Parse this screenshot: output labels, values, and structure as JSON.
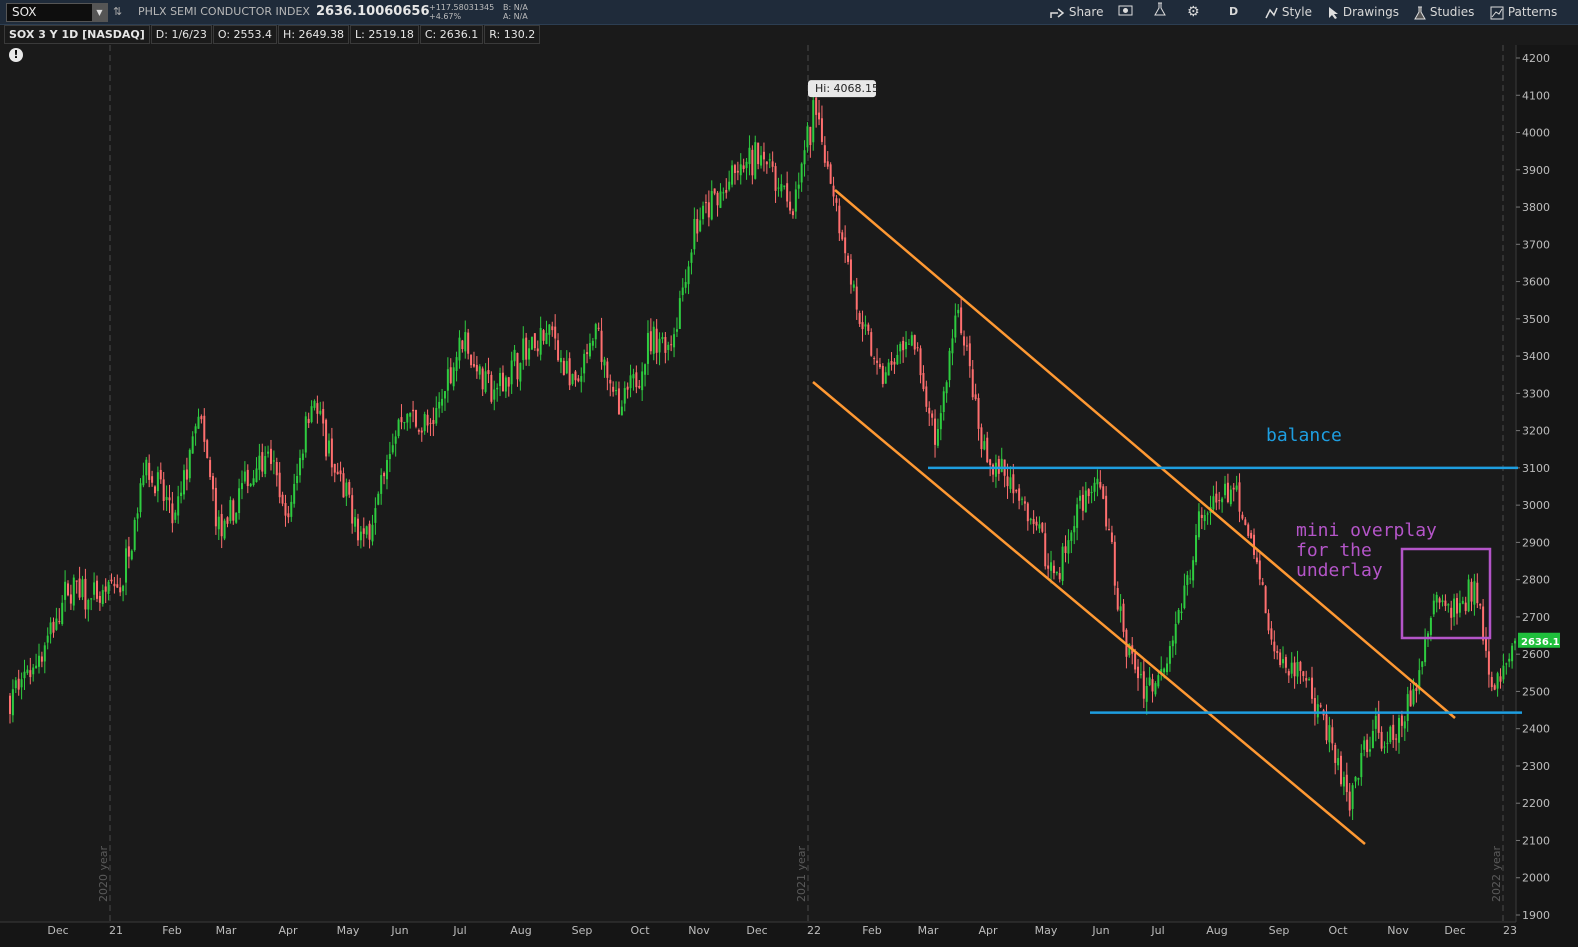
{
  "toolbar": {
    "symbol": "SOX",
    "description": "PHLX SEMI CONDUCTOR INDEX",
    "last": "2636.10060656",
    "change": "+117.58031345",
    "change_pct": "+4.67%",
    "bid": "B: N/A",
    "ask": "A: N/A",
    "share_label": "Share",
    "aggregation": "D",
    "style_label": "Style",
    "drawings_label": "Drawings",
    "studies_label": "Studies",
    "patterns_label": "Patterns"
  },
  "infobar": {
    "title": "SOX 3 Y 1D [NASDAQ]",
    "date": "D: 1/6/23",
    "open": "O: 2553.4",
    "high": "H: 2649.38",
    "low": "L: 2519.18",
    "close": "C: 2636.1",
    "range": "R: 130.2"
  },
  "colors": {
    "up": "#2ecc40",
    "down": "#ff6f6f",
    "channel": "#ff9933",
    "levels": "#1e9ee0",
    "box": "#b455c8",
    "background": "#1a1a1a",
    "last_price_tag": "#1fbf3c"
  },
  "chart_data": {
    "type": "candlestick",
    "title": "SOX 3 Y 1D [NASDAQ]",
    "ylim": [
      1900,
      4250
    ],
    "yticks": [
      4200,
      4100,
      4000,
      3900,
      3800,
      3700,
      3600,
      3500,
      3400,
      3300,
      3200,
      3100,
      3000,
      2900,
      2800,
      2700,
      2600,
      2500,
      2400,
      2300,
      2200,
      2100,
      2000,
      1900
    ],
    "x_labels": [
      "Dec",
      "21",
      "Feb",
      "Mar",
      "Apr",
      "May",
      "Jun",
      "Jul",
      "Aug",
      "Sep",
      "Oct",
      "Nov",
      "Dec",
      "22",
      "Feb",
      "Mar",
      "Apr",
      "May",
      "Jun",
      "Jul",
      "Aug",
      "Sep",
      "Oct",
      "Nov",
      "Dec",
      "23"
    ],
    "year_markers": [
      "2020 year",
      "2021 year",
      "2022 year"
    ],
    "high_label": "Hi: 4068.15",
    "last_price_label": "2636.1",
    "price_path": [
      [
        0,
        2480
      ],
      [
        0.02,
        2600
      ],
      [
        0.04,
        2780
      ],
      [
        0.06,
        2740
      ],
      [
        0.075,
        2800
      ],
      [
        0.09,
        3120
      ],
      [
        0.11,
        2950
      ],
      [
        0.125,
        3250
      ],
      [
        0.14,
        2900
      ],
      [
        0.155,
        3050
      ],
      [
        0.17,
        3150
      ],
      [
        0.185,
        2960
      ],
      [
        0.2,
        3300
      ],
      [
        0.215,
        3100
      ],
      [
        0.235,
        2900
      ],
      [
        0.26,
        3250
      ],
      [
        0.28,
        3200
      ],
      [
        0.3,
        3450
      ],
      [
        0.32,
        3300
      ],
      [
        0.34,
        3400
      ],
      [
        0.36,
        3460
      ],
      [
        0.375,
        3300
      ],
      [
        0.39,
        3460
      ],
      [
        0.405,
        3240
      ],
      [
        0.425,
        3430
      ],
      [
        0.44,
        3450
      ],
      [
        0.455,
        3750
      ],
      [
        0.475,
        3850
      ],
      [
        0.5,
        3950
      ],
      [
        0.52,
        3800
      ],
      [
        0.535,
        4068
      ],
      [
        0.55,
        3800
      ],
      [
        0.565,
        3480
      ],
      [
        0.58,
        3340
      ],
      [
        0.6,
        3450
      ],
      [
        0.615,
        3150
      ],
      [
        0.63,
        3540
      ],
      [
        0.645,
        3150
      ],
      [
        0.66,
        3080
      ],
      [
        0.68,
        2950
      ],
      [
        0.695,
        2800
      ],
      [
        0.71,
        3000
      ],
      [
        0.725,
        3050
      ],
      [
        0.74,
        2650
      ],
      [
        0.755,
        2500
      ],
      [
        0.77,
        2600
      ],
      [
        0.79,
        2950
      ],
      [
        0.81,
        3050
      ],
      [
        0.825,
        2900
      ],
      [
        0.84,
        2600
      ],
      [
        0.86,
        2550
      ],
      [
        0.875,
        2400
      ],
      [
        0.89,
        2180
      ],
      [
        0.905,
        2400
      ],
      [
        0.92,
        2350
      ],
      [
        0.935,
        2520
      ],
      [
        0.945,
        2750
      ],
      [
        0.96,
        2720
      ],
      [
        0.975,
        2780
      ],
      [
        0.985,
        2520
      ],
      [
        0.995,
        2560
      ],
      [
        1.0,
        2636
      ]
    ],
    "annotations": {
      "balance_label": "balance",
      "box_label_line1": "mini overplay",
      "box_label_line2": "for the",
      "box_label_line3": "underlay"
    }
  }
}
